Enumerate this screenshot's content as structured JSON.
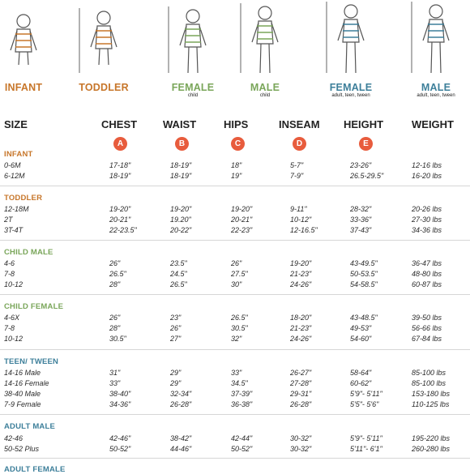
{
  "figures": [
    {
      "label": "INFANT",
      "sub": "",
      "color": "#c7762a"
    },
    {
      "label": "TODDLER",
      "sub": "",
      "color": "#c7762a"
    },
    {
      "label": "FEMALE",
      "sub": "child",
      "color": "#7aa65a"
    },
    {
      "label": "MALE",
      "sub": "child",
      "color": "#7aa65a"
    },
    {
      "label": "FEMALE",
      "sub": "adult, teen, tween",
      "color": "#3d7f9a"
    },
    {
      "label": "MALE",
      "sub": "adult, teen, tween",
      "color": "#3d7f9a"
    }
  ],
  "headers": {
    "size": "SIZE",
    "chest": "CHEST",
    "waist": "WAIST",
    "hips": "HIPS",
    "inseam": "INSEAM",
    "height": "HEIGHT",
    "weight": "WEIGHT"
  },
  "badges": {
    "chest": "A",
    "waist": "B",
    "hips": "C",
    "inseam": "D",
    "height": "E"
  },
  "groups": [
    {
      "title": "INFANT",
      "color": "#c7762a",
      "rows": [
        {
          "size": "0-6M",
          "chest": "17-18\"",
          "waist": "18-19\"",
          "hips": "18\"",
          "inseam": "5-7\"",
          "height": "23-26\"",
          "weight": "12-16 lbs"
        },
        {
          "size": "6-12M",
          "chest": "18-19\"",
          "waist": "18-19\"",
          "hips": "19\"",
          "inseam": "7-9\"",
          "height": "26.5-29.5\"",
          "weight": "16-20 lbs"
        }
      ]
    },
    {
      "title": "TODDLER",
      "color": "#c7762a",
      "rows": [
        {
          "size": "12-18M",
          "chest": "19-20\"",
          "waist": "19-20\"",
          "hips": "19-20\"",
          "inseam": "9-11\"",
          "height": "28-32\"",
          "weight": "20-26 lbs"
        },
        {
          "size": "2T",
          "chest": "20-21\"",
          "waist": "19.20\"",
          "hips": "20-21\"",
          "inseam": "10-12\"",
          "height": "33-36\"",
          "weight": "27-30 lbs"
        },
        {
          "size": "3T-4T",
          "chest": "22-23.5\"",
          "waist": "20-22\"",
          "hips": "22-23\"",
          "inseam": "12-16.5\"",
          "height": "37-43\"",
          "weight": "34-36 lbs"
        }
      ]
    },
    {
      "title": "CHILD MALE",
      "color": "#7aa65a",
      "rows": [
        {
          "size": "4-6",
          "chest": "26\"",
          "waist": "23.5\"",
          "hips": "26\"",
          "inseam": "19-20\"",
          "height": "43-49.5\"",
          "weight": "36-47 lbs"
        },
        {
          "size": "7-8",
          "chest": "26.5\"",
          "waist": "24.5\"",
          "hips": "27.5\"",
          "inseam": "21-23\"",
          "height": "50-53.5\"",
          "weight": "48-80 lbs"
        },
        {
          "size": "10-12",
          "chest": "28\"",
          "waist": "26.5\"",
          "hips": "30\"",
          "inseam": "24-26\"",
          "height": "54-58.5\"",
          "weight": "60-87 lbs"
        }
      ]
    },
    {
      "title": "CHILD FEMALE",
      "color": "#7aa65a",
      "rows": [
        {
          "size": "4-6X",
          "chest": "26\"",
          "waist": "23\"",
          "hips": "26.5\"",
          "inseam": "18-20\"",
          "height": "43-48.5\"",
          "weight": "39-50 lbs"
        },
        {
          "size": "7-8",
          "chest": "28\"",
          "waist": "26\"",
          "hips": "30.5\"",
          "inseam": "21-23\"",
          "height": "49-53\"",
          "weight": "56-66 lbs"
        },
        {
          "size": "10-12",
          "chest": "30.5\"",
          "waist": "27\"",
          "hips": "32\"",
          "inseam": "24-26\"",
          "height": "54-60\"",
          "weight": "67-84 lbs"
        }
      ]
    },
    {
      "title": "TEEN/ TWEEN",
      "color": "#3d7f9a",
      "rows": [
        {
          "size": "14-16 Male",
          "chest": "31\"",
          "waist": "29\"",
          "hips": "33\"",
          "inseam": "26-27\"",
          "height": "58-64\"",
          "weight": "85-100 lbs"
        },
        {
          "size": "14-16 Female",
          "chest": "33\"",
          "waist": "29\"",
          "hips": "34.5\"",
          "inseam": "27-28\"",
          "height": "60-62\"",
          "weight": "85-100 lbs"
        },
        {
          "size": "38-40 Male",
          "chest": "38-40\"",
          "waist": "32-34\"",
          "hips": "37-39\"",
          "inseam": "29-31\"",
          "height": "5'9\"- 5'11\"",
          "weight": "153-180 lbs"
        },
        {
          "size": "7-9 Female",
          "chest": "34-36\"",
          "waist": "26-28\"",
          "hips": "36-38\"",
          "inseam": "26-28\"",
          "height": "5'5\"- 5'6\"",
          "weight": "110-125 lbs"
        }
      ]
    },
    {
      "title": "ADULT MALE",
      "color": "#3d7f9a",
      "rows": [
        {
          "size": "42-46",
          "chest": "42-46\"",
          "waist": "38-42\"",
          "hips": "42-44\"",
          "inseam": "30-32\"",
          "height": "5'9\"- 5'11\"",
          "weight": "195-220 lbs"
        },
        {
          "size": "50-52 Plus",
          "chest": "50-52\"",
          "waist": "44-46\"",
          "hips": "50-52\"",
          "inseam": "30-32\"",
          "height": "5'11\"- 6'1\"",
          "weight": "260-280 lbs"
        }
      ]
    },
    {
      "title": "ADULT FEMALE",
      "color": "#3d7f9a",
      "rows": []
    }
  ]
}
